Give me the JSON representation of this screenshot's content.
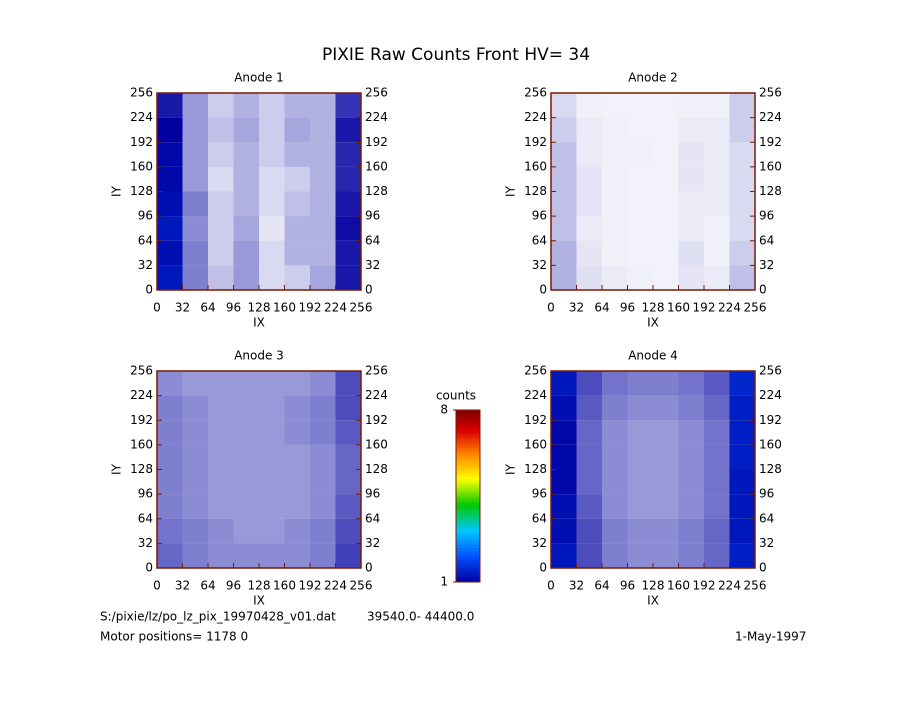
{
  "chart_data": {
    "type": "heatmap",
    "title": "PIXIE Raw Counts Front HV= 34",
    "colorbar": {
      "label": "counts",
      "zlim": [
        1,
        8
      ],
      "zticks": [
        1,
        8
      ]
    },
    "panels": [
      {
        "title": "Anode 1",
        "xlabel": "IX",
        "ylabel": "IY",
        "xlim": [
          0,
          256
        ],
        "ylim": [
          0,
          256
        ],
        "xticks": [
          0,
          32,
          64,
          96,
          128,
          160,
          192,
          224,
          256
        ],
        "yticks": [
          0,
          32,
          64,
          96,
          128,
          160,
          192,
          224,
          256
        ],
        "z": [
          [
            1.3,
            0.5,
            0.25,
            0.4,
            0.15,
            0.2,
            0.35,
            0.9
          ],
          [
            1.2,
            0.5,
            0.2,
            0.4,
            0.15,
            0.3,
            0.3,
            0.9
          ],
          [
            1.3,
            0.45,
            0.2,
            0.35,
            0.1,
            0.3,
            0.3,
            0.95
          ],
          [
            1.2,
            0.5,
            0.2,
            0.3,
            0.15,
            0.25,
            0.3,
            0.9
          ],
          [
            1.1,
            0.4,
            0.15,
            0.3,
            0.15,
            0.2,
            0.3,
            0.85
          ],
          [
            1.1,
            0.4,
            0.2,
            0.3,
            0.2,
            0.3,
            0.3,
            0.85
          ],
          [
            1.0,
            0.4,
            0.25,
            0.35,
            0.2,
            0.35,
            0.3,
            0.9
          ],
          [
            0.9,
            0.4,
            0.2,
            0.3,
            0.2,
            0.3,
            0.3,
            0.8
          ]
        ]
      },
      {
        "title": "Anode 2",
        "xlabel": "IX",
        "ylabel": "IY",
        "xlim": [
          0,
          256
        ],
        "ylim": [
          0,
          256
        ],
        "xticks": [
          0,
          32,
          64,
          96,
          128,
          160,
          192,
          224,
          256
        ],
        "yticks": [
          0,
          32,
          64,
          96,
          128,
          160,
          192,
          224,
          256
        ],
        "z": [
          [
            0.3,
            0.12,
            0.08,
            0.06,
            0.05,
            0.1,
            0.08,
            0.25
          ],
          [
            0.3,
            0.1,
            0.06,
            0.05,
            0.05,
            0.12,
            0.06,
            0.2
          ],
          [
            0.25,
            0.08,
            0.06,
            0.05,
            0.05,
            0.08,
            0.06,
            0.15
          ],
          [
            0.25,
            0.1,
            0.06,
            0.05,
            0.05,
            0.08,
            0.08,
            0.15
          ],
          [
            0.25,
            0.1,
            0.06,
            0.05,
            0.05,
            0.1,
            0.08,
            0.15
          ],
          [
            0.25,
            0.08,
            0.06,
            0.06,
            0.05,
            0.1,
            0.08,
            0.15
          ],
          [
            0.2,
            0.08,
            0.06,
            0.05,
            0.05,
            0.08,
            0.08,
            0.2
          ],
          [
            0.15,
            0.06,
            0.05,
            0.05,
            0.05,
            0.06,
            0.06,
            0.2
          ]
        ]
      },
      {
        "title": "Anode 3",
        "xlabel": "IX",
        "ylabel": "IY",
        "xlim": [
          0,
          256
        ],
        "ylim": [
          0,
          256
        ],
        "xticks": [
          0,
          32,
          64,
          96,
          128,
          160,
          192,
          224,
          256
        ],
        "yticks": [
          0,
          32,
          64,
          96,
          128,
          160,
          192,
          224,
          256
        ],
        "z": [
          [
            0.6,
            0.5,
            0.45,
            0.45,
            0.45,
            0.45,
            0.5,
            0.75
          ],
          [
            0.55,
            0.5,
            0.45,
            0.4,
            0.4,
            0.45,
            0.5,
            0.7
          ],
          [
            0.5,
            0.45,
            0.4,
            0.4,
            0.4,
            0.4,
            0.45,
            0.65
          ],
          [
            0.5,
            0.45,
            0.4,
            0.4,
            0.4,
            0.4,
            0.45,
            0.6
          ],
          [
            0.5,
            0.45,
            0.4,
            0.4,
            0.4,
            0.4,
            0.45,
            0.6
          ],
          [
            0.5,
            0.45,
            0.4,
            0.4,
            0.4,
            0.45,
            0.5,
            0.65
          ],
          [
            0.5,
            0.45,
            0.4,
            0.4,
            0.4,
            0.45,
            0.5,
            0.7
          ],
          [
            0.45,
            0.4,
            0.4,
            0.4,
            0.4,
            0.4,
            0.45,
            0.7
          ]
        ]
      },
      {
        "title": "Anode 4",
        "xlabel": "IX",
        "ylabel": "IY",
        "xlim": [
          0,
          256
        ],
        "ylim": [
          0,
          256
        ],
        "xticks": [
          0,
          32,
          64,
          96,
          128,
          160,
          192,
          224,
          256
        ],
        "yticks": [
          0,
          32,
          64,
          96,
          128,
          160,
          192,
          224,
          256
        ],
        "z": [
          [
            1.3,
            0.7,
            0.5,
            0.45,
            0.45,
            0.5,
            0.6,
            1.4
          ],
          [
            1.2,
            0.7,
            0.5,
            0.45,
            0.45,
            0.5,
            0.6,
            1.3
          ],
          [
            1.2,
            0.65,
            0.45,
            0.4,
            0.4,
            0.45,
            0.55,
            1.3
          ],
          [
            1.1,
            0.6,
            0.45,
            0.4,
            0.4,
            0.45,
            0.55,
            1.3
          ],
          [
            1.1,
            0.6,
            0.45,
            0.4,
            0.4,
            0.45,
            0.55,
            1.4
          ],
          [
            1.1,
            0.6,
            0.45,
            0.4,
            0.4,
            0.45,
            0.55,
            1.4
          ],
          [
            1.2,
            0.65,
            0.5,
            0.45,
            0.45,
            0.5,
            0.6,
            1.4
          ],
          [
            1.3,
            0.7,
            0.55,
            0.5,
            0.5,
            0.55,
            0.65,
            1.5
          ]
        ]
      }
    ]
  },
  "footer": {
    "file": "S:/pixie/lz/po_lz_pix_19970428_v01.dat",
    "range": "39540.0- 44400.0",
    "motor": "Motor positions= 1178 0",
    "date": "1-May-1997"
  }
}
